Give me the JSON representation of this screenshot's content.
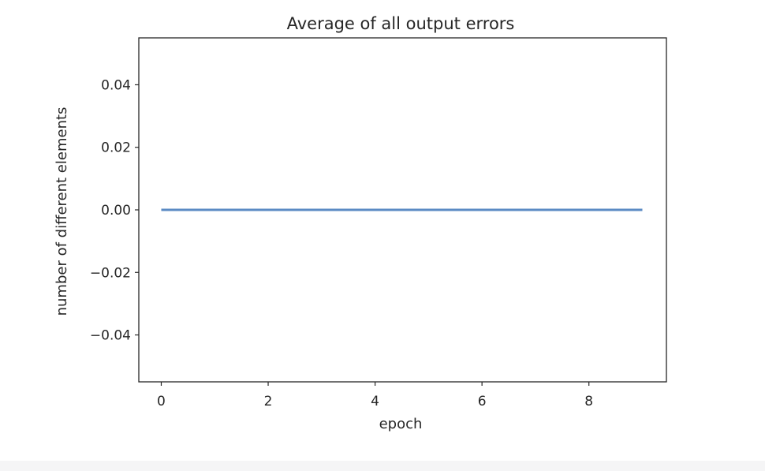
{
  "chart_data": {
    "type": "line",
    "title": "Average of all output errors",
    "xlabel": "epoch",
    "ylabel": "number of different elements",
    "xlim": [
      -0.42,
      9.45
    ],
    "ylim": [
      -0.055,
      0.055
    ],
    "x_ticks": [
      0,
      2,
      4,
      6,
      8
    ],
    "y_ticks": [
      0.04,
      0.02,
      0.0,
      -0.02,
      -0.04
    ],
    "x_tick_labels": [
      "0",
      "2",
      "4",
      "6",
      "8"
    ],
    "y_tick_labels": [
      "0.04",
      "0.02",
      "0.00",
      "−0.02",
      "−0.04"
    ],
    "grid": false,
    "legend": "none",
    "series": [
      {
        "x": [
          0,
          1,
          2,
          3,
          4,
          5,
          6,
          7,
          8,
          9
        ],
        "values": [
          0,
          0,
          0,
          0,
          0,
          0,
          0,
          0,
          0,
          0
        ],
        "color": "#5b8bc4"
      }
    ]
  }
}
